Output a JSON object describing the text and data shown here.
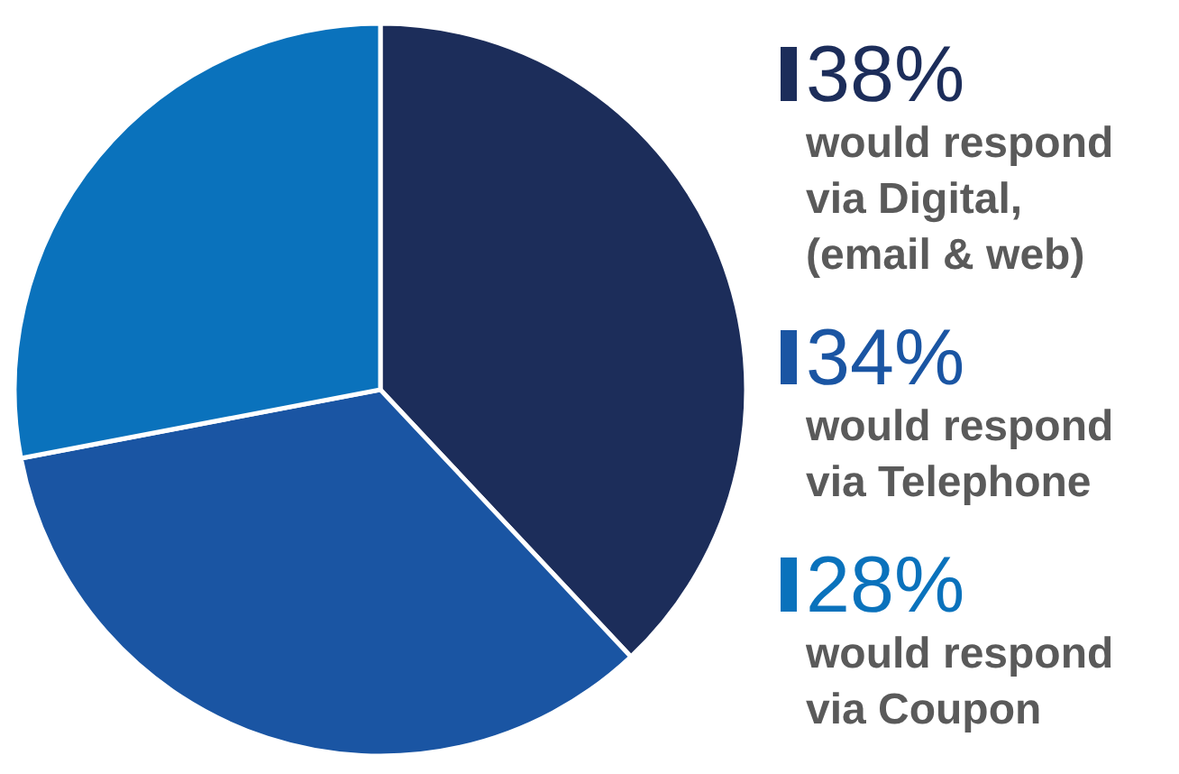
{
  "chart_data": {
    "type": "pie",
    "categories": [
      "would respond via Digital, (email & web)",
      "would respond via Telephone",
      "would respond via Coupon"
    ],
    "values": [
      38,
      34,
      28
    ],
    "colors": [
      "#1c2d5a",
      "#1a55a3",
      "#0a72bc"
    ],
    "value_labels": [
      "38%",
      "34%",
      "28%"
    ],
    "legend": "right"
  }
}
